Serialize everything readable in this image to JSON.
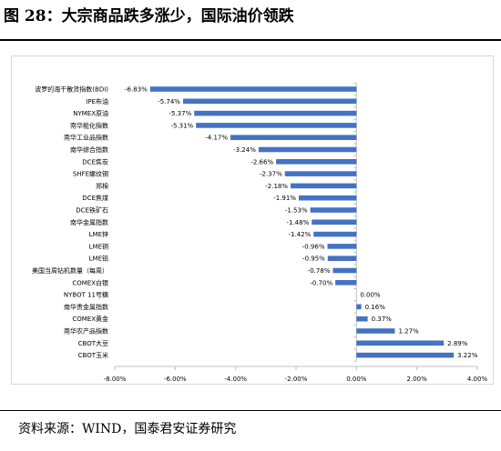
{
  "figure": {
    "title": "图 28：大宗商品跌多涨少，国际油价领跌",
    "source": "资料来源：WIND，国泰君安证券研究"
  },
  "chart_data": {
    "type": "bar",
    "orientation": "horizontal",
    "categories": [
      "波罗的海干散货指数(BDI)",
      "IPE布油",
      "NYMEX原油",
      "南华能化指数",
      "南华工业品指数",
      "南华综合指数",
      "DCE焦炭",
      "SHFE螺纹钢",
      "郑棉",
      "DCE焦煤",
      "DCE铁矿石",
      "南华金属指数",
      "LME锌",
      "LME铜",
      "LME铝",
      "美国当周钻机数量（每周）",
      "COMEX白银",
      "NYBOT 11号糖",
      "南华贵金属指数",
      "COMEX黄金",
      "南华农产品指数",
      "CBOT大豆",
      "CBOT玉米"
    ],
    "values": [
      -6.83,
      -5.74,
      -5.37,
      -5.31,
      -4.17,
      -3.24,
      -2.66,
      -2.37,
      -2.18,
      -1.91,
      -1.53,
      -1.48,
      -1.42,
      -0.96,
      -0.95,
      -0.78,
      -0.7,
      0.0,
      0.16,
      0.37,
      1.27,
      2.89,
      3.22
    ],
    "data_labels": [
      "-6.83%",
      "-5.74%",
      "-5.37%",
      "-5.31%",
      "-4.17%",
      "-3.24%",
      "-2.66%",
      "-2.37%",
      "-2.18%",
      "-1.91%",
      "-1.53%",
      "-1.48%",
      "-1.42%",
      "-0.96%",
      "-0.95%",
      "-0.78%",
      "-0.70%",
      "0.00%",
      "0.16%",
      "0.37%",
      "1.27%",
      "2.89%",
      "3.22%"
    ],
    "xlim": [
      -8,
      4
    ],
    "xticks": [
      -8,
      -6,
      -4,
      -2,
      0,
      2,
      4
    ],
    "xtick_labels": [
      "-8.00%",
      "-6.00%",
      "-4.00%",
      "-2.00%",
      "0.00%",
      "2.00%",
      "4.00%"
    ],
    "grid": false,
    "legend": "none",
    "colors": {
      "bar": "#4472c4",
      "axis": "#bfbfbf",
      "text": "#000000",
      "panel_border": "#d9d9d9"
    }
  }
}
